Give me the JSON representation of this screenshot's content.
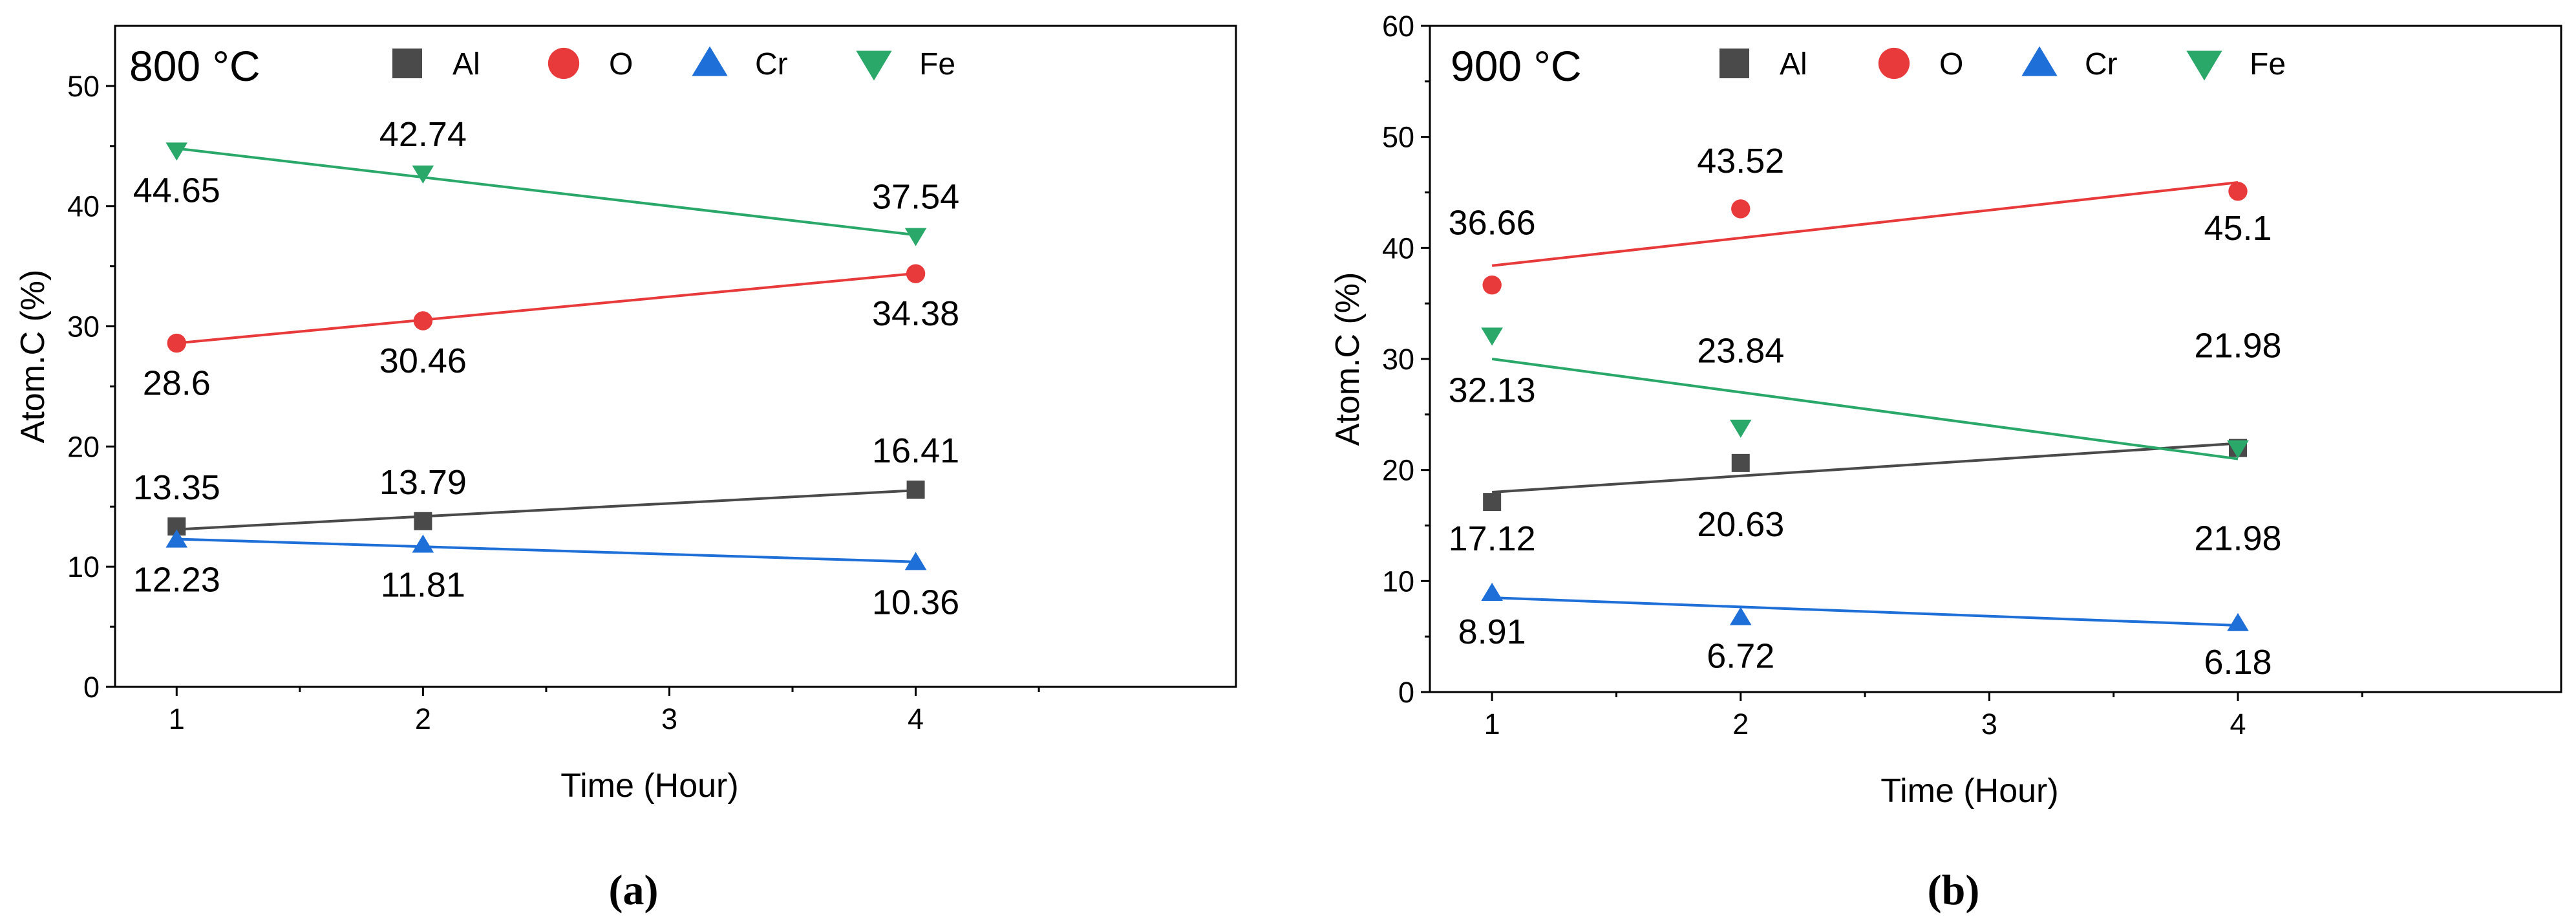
{
  "chart_data": [
    {
      "type": "scatter",
      "panel_label": "(a)",
      "title": "800 °C",
      "xlabel": "Time (Hour)",
      "ylabel": "Atom.C (%)",
      "xlim": [
        0.75,
        5.3
      ],
      "ylim": [
        0,
        55
      ],
      "xticks": [
        1,
        2,
        3,
        4
      ],
      "yticks": [
        0,
        10,
        20,
        30,
        40,
        50
      ],
      "trendlines": true,
      "series": [
        {
          "name": "Al",
          "marker": "square",
          "color": "#4a4a4a",
          "x": [
            1,
            2,
            4
          ],
          "values": [
            13.35,
            13.79,
            16.41
          ],
          "labels": [
            "13.35",
            "13.79",
            "16.41"
          ],
          "fit": [
            13.1,
            16.35
          ]
        },
        {
          "name": "O",
          "marker": "circle",
          "color": "#e8393b",
          "x": [
            1,
            2,
            4
          ],
          "values": [
            28.6,
            30.46,
            34.38
          ],
          "labels": [
            "28.6",
            "30.46",
            "34.38"
          ],
          "fit": [
            28.6,
            34.4
          ]
        },
        {
          "name": "Cr",
          "marker": "triangle-up",
          "color": "#1f6fd8",
          "x": [
            1,
            2,
            4
          ],
          "values": [
            12.23,
            11.81,
            10.36
          ],
          "labels": [
            "12.23",
            "11.81",
            "10.36"
          ],
          "fit": [
            12.3,
            10.4
          ]
        },
        {
          "name": "Fe",
          "marker": "triangle-down",
          "color": "#2aa86a",
          "x": [
            1,
            2,
            4
          ],
          "values": [
            44.65,
            42.74,
            37.54
          ],
          "labels": [
            "44.65",
            "42.74",
            "37.54"
          ],
          "fit": [
            44.8,
            37.6
          ]
        }
      ]
    },
    {
      "type": "scatter",
      "panel_label": "(b)",
      "title": "900 °C",
      "xlabel": "Time (Hour)",
      "ylabel": "Atom.C (%)",
      "xlim": [
        0.75,
        5.3
      ],
      "ylim": [
        0,
        60
      ],
      "xticks": [
        1,
        2,
        3,
        4
      ],
      "yticks": [
        0,
        10,
        20,
        30,
        40,
        50,
        60
      ],
      "trendlines": true,
      "series": [
        {
          "name": "Al",
          "marker": "square",
          "color": "#4a4a4a",
          "x": [
            1,
            2,
            4
          ],
          "values": [
            17.12,
            20.63,
            21.98
          ],
          "labels": [
            "17.12",
            "20.63",
            "21.98"
          ],
          "fit": [
            18.0,
            22.4
          ]
        },
        {
          "name": "O",
          "marker": "circle",
          "color": "#e8393b",
          "x": [
            1,
            2,
            4
          ],
          "values": [
            36.66,
            43.52,
            45.1
          ],
          "labels": [
            "36.66",
            "43.52",
            "45.1"
          ],
          "fit": [
            38.4,
            45.9
          ]
        },
        {
          "name": "Cr",
          "marker": "triangle-up",
          "color": "#1f6fd8",
          "x": [
            1,
            2,
            4
          ],
          "values": [
            8.91,
            6.72,
            6.18
          ],
          "labels": [
            "8.91",
            "6.72",
            "6.18"
          ],
          "fit": [
            8.5,
            6.0
          ]
        },
        {
          "name": "Fe",
          "marker": "triangle-down",
          "color": "#2aa86a",
          "x": [
            1,
            2,
            4
          ],
          "values": [
            32.13,
            23.84,
            21.98
          ],
          "labels": [
            "32.13",
            "23.84",
            "21.98"
          ],
          "fit": [
            30.0,
            21.0
          ]
        }
      ]
    }
  ]
}
